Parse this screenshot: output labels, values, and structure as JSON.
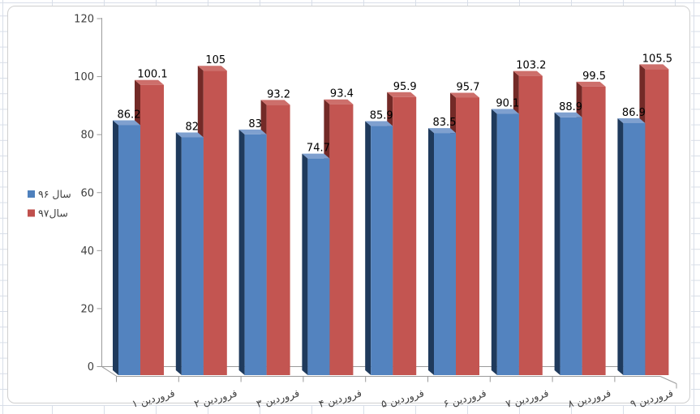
{
  "chart_data": {
    "type": "bar",
    "style": "3d-clustered-column",
    "title": "",
    "xlabel": "",
    "ylabel": "",
    "categories": [
      "۱ فروردین",
      "۲ فروردین",
      "۳ فروردین",
      "۴ فروردین",
      "۵ فروردین",
      "۶ فروردین",
      "۷ فروردین",
      "۸ فروردین",
      "۹ فروردین"
    ],
    "series": [
      {
        "name": "سال ۹۶",
        "values": [
          86.2,
          82,
          83,
          74.7,
          85.9,
          83.5,
          90.1,
          88.9,
          86.9
        ]
      },
      {
        "name": "سال۹۷",
        "values": [
          100.1,
          105,
          93.2,
          93.4,
          95.9,
          95.7,
          103.2,
          99.5,
          105.5
        ]
      }
    ],
    "ylim": [
      0,
      120
    ],
    "yticks": [
      0,
      20,
      40,
      60,
      80,
      100,
      120
    ],
    "grid": false,
    "legend_position": "left",
    "data_labels": true
  },
  "colors": {
    "series1_front": "#5383BF",
    "series1_side": "#1F3A5C",
    "series1_top": "#7FA0CF",
    "series1_marker": "#4F81BD",
    "series2_front": "#C35551",
    "series2_side": "#732A27",
    "series2_top": "#CD6F6B",
    "series2_marker": "#C0504D",
    "axis_line": "#9B9B9B",
    "axis_text": "#3F3F3F",
    "data_label_text": "#000000",
    "chart_frame_border": "#CFCFCF",
    "chart_fill": "#FFFFFF",
    "worksheet_gridline": "#D8DEE8"
  }
}
